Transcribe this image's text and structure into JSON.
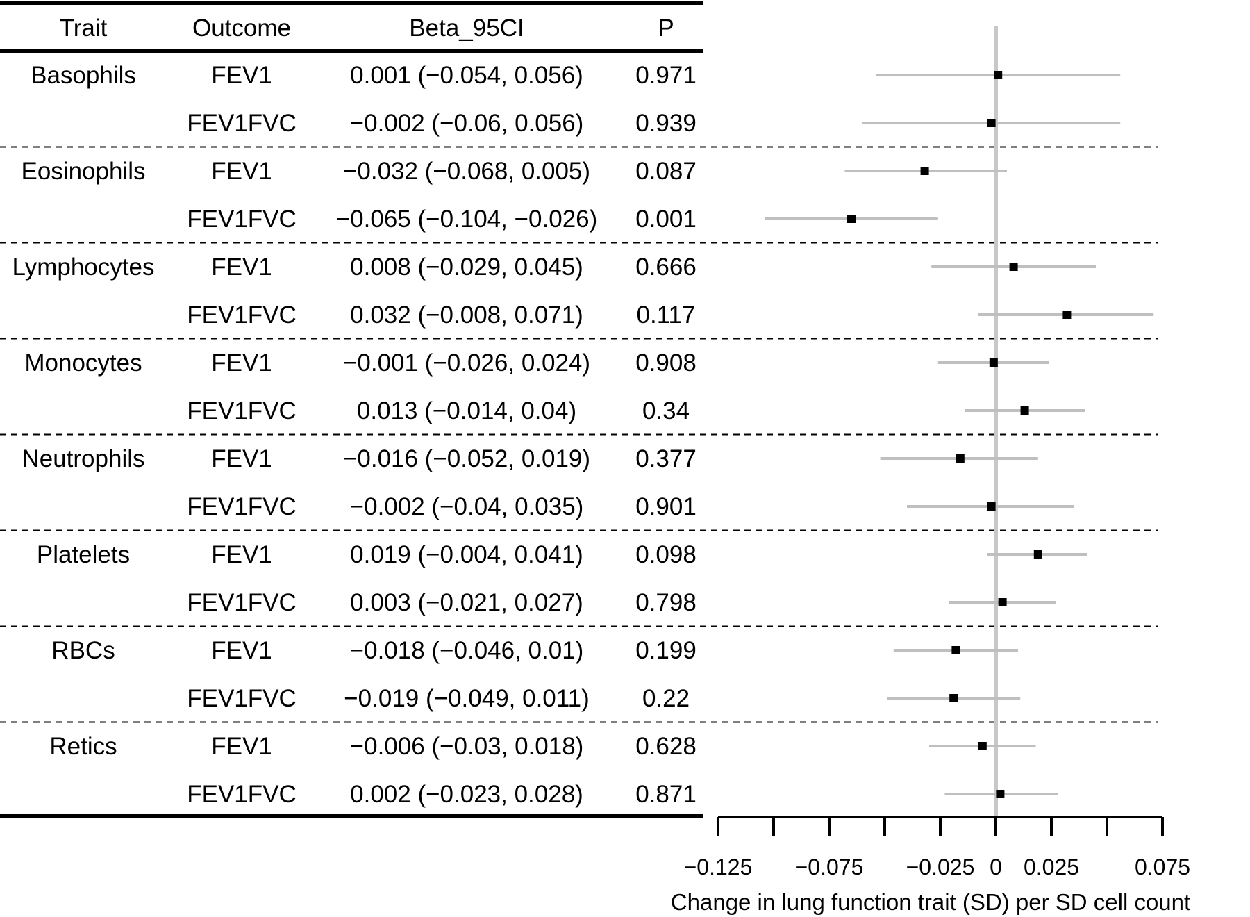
{
  "chart_data": {
    "type": "forest",
    "columns": [
      "Trait",
      "Outcome",
      "Beta_95CI",
      "P"
    ],
    "rows": [
      {
        "trait": "Basophils",
        "outcome": "FEV1",
        "beta": 0.001,
        "lower": -0.054,
        "upper": 0.056,
        "ci_text": "0.001 (−0.054, 0.056)",
        "p": "0.971"
      },
      {
        "trait": "",
        "outcome": "FEV1FVC",
        "beta": -0.002,
        "lower": -0.06,
        "upper": 0.056,
        "ci_text": "−0.002 (−0.06, 0.056)",
        "p": "0.939"
      },
      {
        "trait": "Eosinophils",
        "outcome": "FEV1",
        "beta": -0.032,
        "lower": -0.068,
        "upper": 0.005,
        "ci_text": "−0.032 (−0.068, 0.005)",
        "p": "0.087"
      },
      {
        "trait": "",
        "outcome": "FEV1FVC",
        "beta": -0.065,
        "lower": -0.104,
        "upper": -0.026,
        "ci_text": "−0.065 (−0.104, −0.026)",
        "p": "0.001"
      },
      {
        "trait": "Lymphocytes",
        "outcome": "FEV1",
        "beta": 0.008,
        "lower": -0.029,
        "upper": 0.045,
        "ci_text": "0.008 (−0.029, 0.045)",
        "p": "0.666"
      },
      {
        "trait": "",
        "outcome": "FEV1FVC",
        "beta": 0.032,
        "lower": -0.008,
        "upper": 0.071,
        "ci_text": "0.032 (−0.008, 0.071)",
        "p": "0.117"
      },
      {
        "trait": "Monocytes",
        "outcome": "FEV1",
        "beta": -0.001,
        "lower": -0.026,
        "upper": 0.024,
        "ci_text": "−0.001 (−0.026, 0.024)",
        "p": "0.908"
      },
      {
        "trait": "",
        "outcome": "FEV1FVC",
        "beta": 0.013,
        "lower": -0.014,
        "upper": 0.04,
        "ci_text": "0.013 (−0.014, 0.04)",
        "p": "0.34"
      },
      {
        "trait": "Neutrophils",
        "outcome": "FEV1",
        "beta": -0.016,
        "lower": -0.052,
        "upper": 0.019,
        "ci_text": "−0.016 (−0.052, 0.019)",
        "p": "0.377"
      },
      {
        "trait": "",
        "outcome": "FEV1FVC",
        "beta": -0.002,
        "lower": -0.04,
        "upper": 0.035,
        "ci_text": "−0.002 (−0.04, 0.035)",
        "p": "0.901"
      },
      {
        "trait": "Platelets",
        "outcome": "FEV1",
        "beta": 0.019,
        "lower": -0.004,
        "upper": 0.041,
        "ci_text": "0.019 (−0.004, 0.041)",
        "p": "0.098"
      },
      {
        "trait": "",
        "outcome": "FEV1FVC",
        "beta": 0.003,
        "lower": -0.021,
        "upper": 0.027,
        "ci_text": "0.003 (−0.021, 0.027)",
        "p": "0.798"
      },
      {
        "trait": "RBCs",
        "outcome": "FEV1",
        "beta": -0.018,
        "lower": -0.046,
        "upper": 0.01,
        "ci_text": "−0.018 (−0.046, 0.01)",
        "p": "0.199"
      },
      {
        "trait": "",
        "outcome": "FEV1FVC",
        "beta": -0.019,
        "lower": -0.049,
        "upper": 0.011,
        "ci_text": "−0.019 (−0.049, 0.011)",
        "p": "0.22"
      },
      {
        "trait": "Retics",
        "outcome": "FEV1",
        "beta": -0.006,
        "lower": -0.03,
        "upper": 0.018,
        "ci_text": "−0.006 (−0.03, 0.018)",
        "p": "0.628"
      },
      {
        "trait": "",
        "outcome": "FEV1FVC",
        "beta": 0.002,
        "lower": -0.023,
        "upper": 0.028,
        "ci_text": "0.002 (−0.023, 0.028)",
        "p": "0.871"
      }
    ],
    "xlim": [
      -0.125,
      0.075
    ],
    "major_ticks": [
      -0.125,
      -0.075,
      -0.025,
      0,
      0.025,
      0.075
    ],
    "major_tick_labels": [
      "−0.125",
      "−0.075",
      "−0.025",
      "0",
      "0.025",
      "0.075"
    ],
    "minor_ticks": [
      -0.1,
      -0.05,
      0.05
    ],
    "reference_line": 0,
    "xlabel": "Change in lung function trait (SD) per SD cell count",
    "colors": {
      "point": "#000000",
      "ci": "#bfbfbf",
      "reference": "#c8c8c8"
    }
  }
}
